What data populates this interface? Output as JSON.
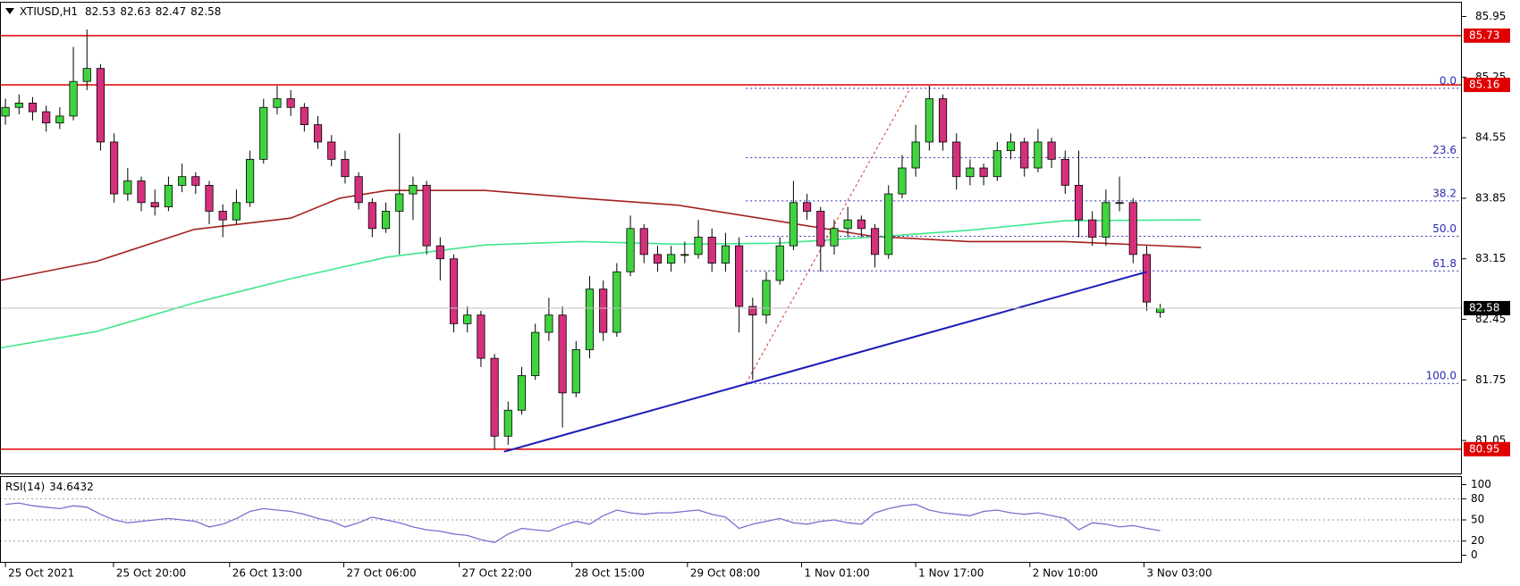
{
  "chart_data": {
    "type": "candlestick",
    "symbol": "XTIUSD,H1",
    "up_color": "#3fd43f",
    "down_color": "#d4307c",
    "candles": [
      [
        84.8,
        85.0,
        84.7,
        84.9
      ],
      [
        84.9,
        85.05,
        84.82,
        84.95
      ],
      [
        84.95,
        85.02,
        84.75,
        84.85
      ],
      [
        84.85,
        84.92,
        84.62,
        84.72
      ],
      [
        84.72,
        84.9,
        84.65,
        84.8
      ],
      [
        84.8,
        85.6,
        84.75,
        85.2
      ],
      [
        85.2,
        85.8,
        85.1,
        85.35
      ],
      [
        85.35,
        85.4,
        84.4,
        84.5
      ],
      [
        84.5,
        84.6,
        83.8,
        83.9
      ],
      [
        83.9,
        84.2,
        83.82,
        84.05
      ],
      [
        84.05,
        84.1,
        83.7,
        83.8
      ],
      [
        83.8,
        83.95,
        83.65,
        83.75
      ],
      [
        83.75,
        84.1,
        83.7,
        84.0
      ],
      [
        84.0,
        84.25,
        83.92,
        84.1
      ],
      [
        84.1,
        84.15,
        83.9,
        84.0
      ],
      [
        84.0,
        84.05,
        83.55,
        83.7
      ],
      [
        83.7,
        83.78,
        83.4,
        83.6
      ],
      [
        83.6,
        83.95,
        83.55,
        83.8
      ],
      [
        83.8,
        84.4,
        83.75,
        84.3
      ],
      [
        84.3,
        85.0,
        84.25,
        84.9
      ],
      [
        84.9,
        85.15,
        84.82,
        85.0
      ],
      [
        85.0,
        85.1,
        84.8,
        84.9
      ],
      [
        84.9,
        84.95,
        84.62,
        84.7
      ],
      [
        84.7,
        84.8,
        84.42,
        84.5
      ],
      [
        84.5,
        84.58,
        84.22,
        84.3
      ],
      [
        84.3,
        84.4,
        84.02,
        84.1
      ],
      [
        84.1,
        84.15,
        83.72,
        83.8
      ],
      [
        83.8,
        83.85,
        83.4,
        83.5
      ],
      [
        83.5,
        83.8,
        83.45,
        83.7
      ],
      [
        83.7,
        84.6,
        83.2,
        83.9
      ],
      [
        83.9,
        84.1,
        83.6,
        84.0
      ],
      [
        84.0,
        84.05,
        83.2,
        83.3
      ],
      [
        83.3,
        83.4,
        82.9,
        83.15
      ],
      [
        83.15,
        83.2,
        82.3,
        82.4
      ],
      [
        82.4,
        82.6,
        82.3,
        82.5
      ],
      [
        82.5,
        82.55,
        81.9,
        82.0
      ],
      [
        82.0,
        82.05,
        80.95,
        81.1
      ],
      [
        81.1,
        81.5,
        81.0,
        81.4
      ],
      [
        81.4,
        81.9,
        81.35,
        81.8
      ],
      [
        81.8,
        82.4,
        81.75,
        82.3
      ],
      [
        82.3,
        82.7,
        82.2,
        82.5
      ],
      [
        82.5,
        82.6,
        81.2,
        81.6
      ],
      [
        81.6,
        82.2,
        81.55,
        82.1
      ],
      [
        82.1,
        82.95,
        82.0,
        82.8
      ],
      [
        82.8,
        82.9,
        82.2,
        82.3
      ],
      [
        82.3,
        83.1,
        82.25,
        83.0
      ],
      [
        83.0,
        83.65,
        82.95,
        83.5
      ],
      [
        83.5,
        83.55,
        83.1,
        83.2
      ],
      [
        83.2,
        83.3,
        83.0,
        83.1
      ],
      [
        83.1,
        83.3,
        83.0,
        83.2
      ],
      [
        83.2,
        83.35,
        83.1,
        83.2
      ],
      [
        83.2,
        83.6,
        83.15,
        83.4
      ],
      [
        83.4,
        83.5,
        83.0,
        83.1
      ],
      [
        83.1,
        83.45,
        83.0,
        83.3
      ],
      [
        83.3,
        83.4,
        82.3,
        82.6
      ],
      [
        82.6,
        82.7,
        81.75,
        82.5
      ],
      [
        82.5,
        83.0,
        82.4,
        82.9
      ],
      [
        82.9,
        83.4,
        82.85,
        83.3
      ],
      [
        83.3,
        84.05,
        83.25,
        83.8
      ],
      [
        83.8,
        83.9,
        83.6,
        83.7
      ],
      [
        83.7,
        83.75,
        83.0,
        83.3
      ],
      [
        83.3,
        83.6,
        83.2,
        83.5
      ],
      [
        83.5,
        83.75,
        83.4,
        83.6
      ],
      [
        83.6,
        83.65,
        83.4,
        83.5
      ],
      [
        83.5,
        83.55,
        83.05,
        83.2
      ],
      [
        83.2,
        84.0,
        83.15,
        83.9
      ],
      [
        83.9,
        84.35,
        83.85,
        84.2
      ],
      [
        84.2,
        84.7,
        84.1,
        84.5
      ],
      [
        84.5,
        85.15,
        84.4,
        85.0
      ],
      [
        85.0,
        85.05,
        84.4,
        84.5
      ],
      [
        84.5,
        84.6,
        83.95,
        84.1
      ],
      [
        84.1,
        84.3,
        84.0,
        84.2
      ],
      [
        84.2,
        84.25,
        84.0,
        84.1
      ],
      [
        84.1,
        84.5,
        84.05,
        84.4
      ],
      [
        84.4,
        84.6,
        84.3,
        84.5
      ],
      [
        84.5,
        84.55,
        84.1,
        84.2
      ],
      [
        84.2,
        84.65,
        84.15,
        84.5
      ],
      [
        84.5,
        84.55,
        84.2,
        84.3
      ],
      [
        84.3,
        84.4,
        83.9,
        84.0
      ],
      [
        84.0,
        84.4,
        83.4,
        83.6
      ],
      [
        83.6,
        83.7,
        83.3,
        83.4
      ],
      [
        83.4,
        83.95,
        83.3,
        83.8
      ],
      [
        83.8,
        84.1,
        83.7,
        83.8
      ],
      [
        83.8,
        83.85,
        83.1,
        83.2
      ],
      [
        83.2,
        83.3,
        82.55,
        82.65
      ],
      [
        82.53,
        82.63,
        82.47,
        82.58
      ]
    ],
    "ylim": [
      80.69,
      86.1
    ],
    "yticks": [
      85.95,
      85.25,
      84.55,
      83.85,
      83.15,
      82.45,
      81.75,
      81.05
    ],
    "xlim": [
      -0.4,
      107.2
    ],
    "xticks": [
      {
        "value": 0,
        "label": "25 Oct 2021"
      },
      {
        "value": 7.95,
        "label": "25 Oct 20:00"
      },
      {
        "value": 16.5,
        "label": "26 Oct 13:00"
      },
      {
        "value": 24.9,
        "label": "27 Oct 06:00"
      },
      {
        "value": 33.4,
        "label": "27 Oct 22:00"
      },
      {
        "value": 41.7,
        "label": "28 Oct 15:00"
      },
      {
        "value": 50.2,
        "label": "29 Oct 08:00"
      },
      {
        "value": 58.6,
        "label": "1 Nov 01:00"
      },
      {
        "value": 67.0,
        "label": "1 Nov 17:00"
      },
      {
        "value": 75.4,
        "label": "2 Nov 10:00"
      },
      {
        "value": 83.8,
        "label": "3 Nov 03:00"
      }
    ],
    "moving_averages": [
      {
        "color": "#a52020",
        "x": [
          -0.4,
          6.7,
          13.9,
          21,
          24.6,
          28.1,
          35.3,
          42.4,
          49.5,
          56.7,
          63.8,
          70.9,
          78,
          88
        ],
        "values": [
          82.9,
          83.12,
          83.49,
          83.62,
          83.85,
          83.94,
          83.94,
          83.85,
          83.77,
          83.59,
          83.41,
          83.35,
          83.35,
          83.28
        ]
      },
      {
        "color": "#3ee88a",
        "x": [
          -0.4,
          6.7,
          13.9,
          21,
          28.1,
          35.3,
          42.4,
          49.5,
          56.7,
          63.8,
          70.9,
          78,
          88
        ],
        "values": [
          82.12,
          82.31,
          82.64,
          82.92,
          83.17,
          83.31,
          83.35,
          83.32,
          83.33,
          83.4,
          83.48,
          83.59,
          83.6
        ]
      }
    ],
    "levels": {
      "color": "#e00000",
      "values": [
        85.73,
        85.16,
        80.95
      ]
    },
    "fibonacci": {
      "color": "#2a2ab4",
      "x": [
        54.5,
        66.6
      ],
      "levels": [
        {
          "label": "0.0",
          "value": 85.12
        },
        {
          "label": "23.6",
          "value": 84.32
        },
        {
          "label": "38.2",
          "value": 83.82
        },
        {
          "label": "50.0",
          "value": 83.41
        },
        {
          "label": "61.8",
          "value": 83.01
        },
        {
          "label": "100.0",
          "value": 81.71
        }
      ],
      "diagonal_color": "#e03030"
    },
    "trendline": {
      "color": "#1a1ab8",
      "x": [
        36.7,
        84
      ],
      "values": [
        80.92,
        83.0
      ]
    },
    "rsi": {
      "label": "RSI(14)",
      "color": "#7b6fd0",
      "ylim": [
        -9.5,
        110.8
      ],
      "yticks": [
        100,
        80,
        50,
        20,
        0
      ],
      "levels": [
        80,
        50,
        20
      ],
      "values": [
        72,
        74,
        70,
        68,
        66,
        70,
        68,
        58,
        50,
        46,
        48,
        50,
        52,
        50,
        48,
        40,
        44,
        52,
        62,
        66,
        64,
        62,
        58,
        52,
        48,
        40,
        46,
        54,
        50,
        46,
        40,
        36,
        34,
        30,
        28,
        22,
        18,
        30,
        38,
        36,
        34,
        42,
        48,
        44,
        56,
        64,
        60,
        58,
        60,
        60,
        62,
        64,
        58,
        54,
        38,
        44,
        48,
        52,
        46,
        44,
        48,
        50,
        46,
        44,
        60,
        66,
        70,
        72,
        64,
        60,
        58,
        56,
        62,
        64,
        60,
        58,
        60,
        56,
        52,
        36,
        46,
        44,
        40,
        42,
        38,
        34.6432
      ]
    }
  }
}
